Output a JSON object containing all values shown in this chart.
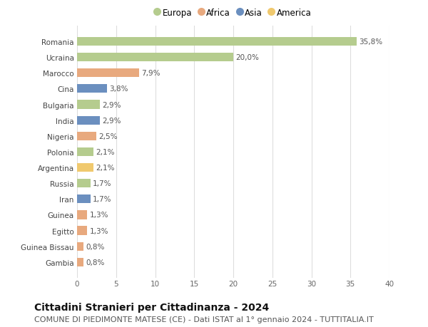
{
  "countries": [
    "Romania",
    "Ucraina",
    "Marocco",
    "Cina",
    "Bulgaria",
    "India",
    "Nigeria",
    "Polonia",
    "Argentina",
    "Russia",
    "Iran",
    "Guinea",
    "Egitto",
    "Guinea Bissau",
    "Gambia"
  ],
  "values": [
    35.8,
    20.0,
    7.9,
    3.8,
    2.9,
    2.9,
    2.5,
    2.1,
    2.1,
    1.7,
    1.7,
    1.3,
    1.3,
    0.8,
    0.8
  ],
  "labels": [
    "35,8%",
    "20,0%",
    "7,9%",
    "3,8%",
    "2,9%",
    "2,9%",
    "2,5%",
    "2,1%",
    "2,1%",
    "1,7%",
    "1,7%",
    "1,3%",
    "1,3%",
    "0,8%",
    "0,8%"
  ],
  "continents": [
    "Europa",
    "Europa",
    "Africa",
    "Asia",
    "Europa",
    "Asia",
    "Africa",
    "Europa",
    "America",
    "Europa",
    "Asia",
    "Africa",
    "Africa",
    "Africa",
    "Africa"
  ],
  "continent_colors": {
    "Europa": "#b5cc8e",
    "Africa": "#e8a97e",
    "Asia": "#6b8fbf",
    "America": "#f0c96e"
  },
  "legend_order": [
    "Europa",
    "Africa",
    "Asia",
    "America"
  ],
  "title": "Cittadini Stranieri per Cittadinanza - 2024",
  "subtitle": "COMUNE DI PIEDIMONTE MATESE (CE) - Dati ISTAT al 1° gennaio 2024 - TUTTITALIA.IT",
  "xlim": [
    0,
    40
  ],
  "xticks": [
    0,
    5,
    10,
    15,
    20,
    25,
    30,
    35,
    40
  ],
  "background_color": "#ffffff",
  "grid_color": "#dddddd",
  "bar_height": 0.55,
  "title_fontsize": 10,
  "subtitle_fontsize": 8,
  "label_fontsize": 7.5,
  "tick_fontsize": 7.5,
  "legend_fontsize": 8.5
}
